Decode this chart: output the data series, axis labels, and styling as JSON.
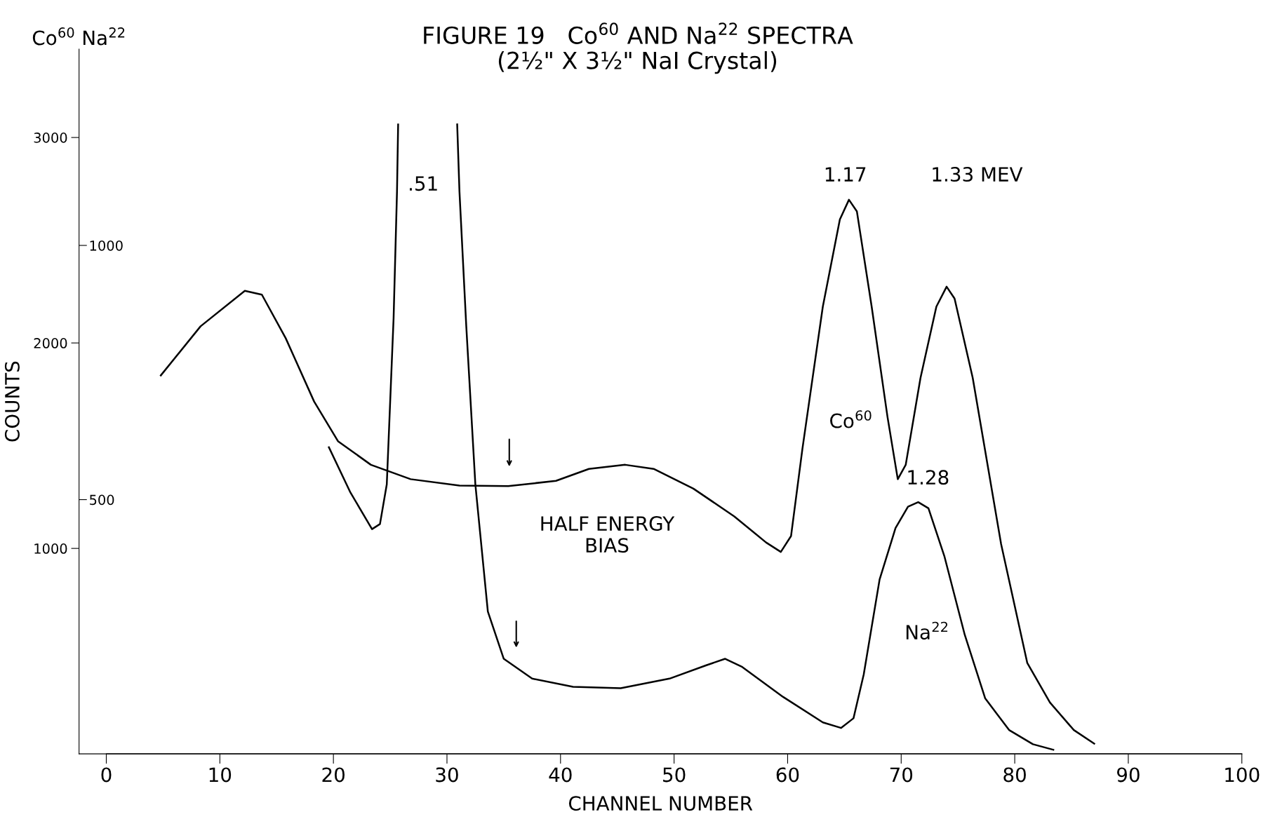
{
  "chart_data": {
    "type": "line",
    "title": "FIGURE 19   Co$^{60}$ AND Na$^{22}$ SPECTRA",
    "subtitle": "(2½\" X 3½\" NaI Crystal)",
    "xlabel": "CHANNEL NUMBER",
    "ylabel": "COUNTS",
    "xlim": [
      -2.4,
      100
    ],
    "xticks": [
      0,
      10,
      20,
      30,
      40,
      50,
      60,
      70,
      80,
      90,
      100
    ],
    "ylim": [
      0,
      3430
    ],
    "yticks": [
      1000,
      2000,
      3000
    ],
    "y2lim": [
      0,
      1386
    ],
    "y2ticks": [
      500,
      1000
    ],
    "grid": false,
    "line_style": "solid",
    "series": [
      {
        "name": "Co$^{60}$",
        "color": "#000000",
        "x": [
          4.8,
          8.3,
          12.2,
          13.7,
          15.8,
          18.3,
          20.4,
          23.3,
          26.8,
          31.1,
          35.4,
          39.6,
          42.5,
          45.7,
          48.2,
          51.7,
          55.3,
          58.1,
          59.4,
          60.3,
          61.3,
          63.1,
          64.6,
          65.4,
          66.1,
          67.4,
          68.8,
          69.7,
          70.4,
          71.7,
          73.1,
          74.0,
          74.7,
          76.3,
          78.8,
          81.1,
          83.1,
          85.2,
          87.0
        ],
        "values": [
          1842,
          2081,
          2254,
          2235,
          2023,
          1715,
          1522,
          1407,
          1337,
          1306,
          1303,
          1329,
          1387,
          1407,
          1387,
          1291,
          1156,
          1029,
          983,
          1060,
          1484,
          2177,
          2601,
          2697,
          2640,
          2177,
          1638,
          1337,
          1407,
          1830,
          2177,
          2274,
          2216,
          1830,
          1021,
          443,
          250,
          116,
          50
        ]
      },
      {
        "name": "Na$^{22}$",
        "color": "#000000",
        "axis": "y2",
        "x": [
          19.6,
          21.5,
          23.4,
          24.1,
          24.7,
          25.3,
          25.6,
          25.7,
          28.3,
          30.9,
          31.1,
          31.7,
          32.5,
          33.6,
          35.0,
          37.5,
          41.1,
          45.3,
          49.6,
          52.8,
          54.5,
          56.0,
          59.6,
          63.1,
          64.7,
          65.8,
          66.7,
          68.1,
          69.5,
          70.6,
          71.5,
          72.4,
          73.8,
          75.6,
          77.4,
          79.5,
          81.6,
          83.4
        ],
        "values": [
          603,
          514,
          442,
          452,
          530,
          857,
          1106,
          1238,
          null,
          1238,
          1106,
          841,
          530,
          280,
          187,
          148,
          132,
          129,
          148,
          174,
          187,
          171,
          112,
          62,
          51,
          70,
          156,
          343,
          444,
          486,
          495,
          483,
          389,
          234,
          109,
          47,
          19,
          8
        ]
      }
    ],
    "annotations": [
      "Co$^{60}$ Na$^{22}$",
      ".51",
      "1.17",
      "1.33 MEV",
      "1.28",
      "HALF ENERGY\nBIAS"
    ]
  }
}
